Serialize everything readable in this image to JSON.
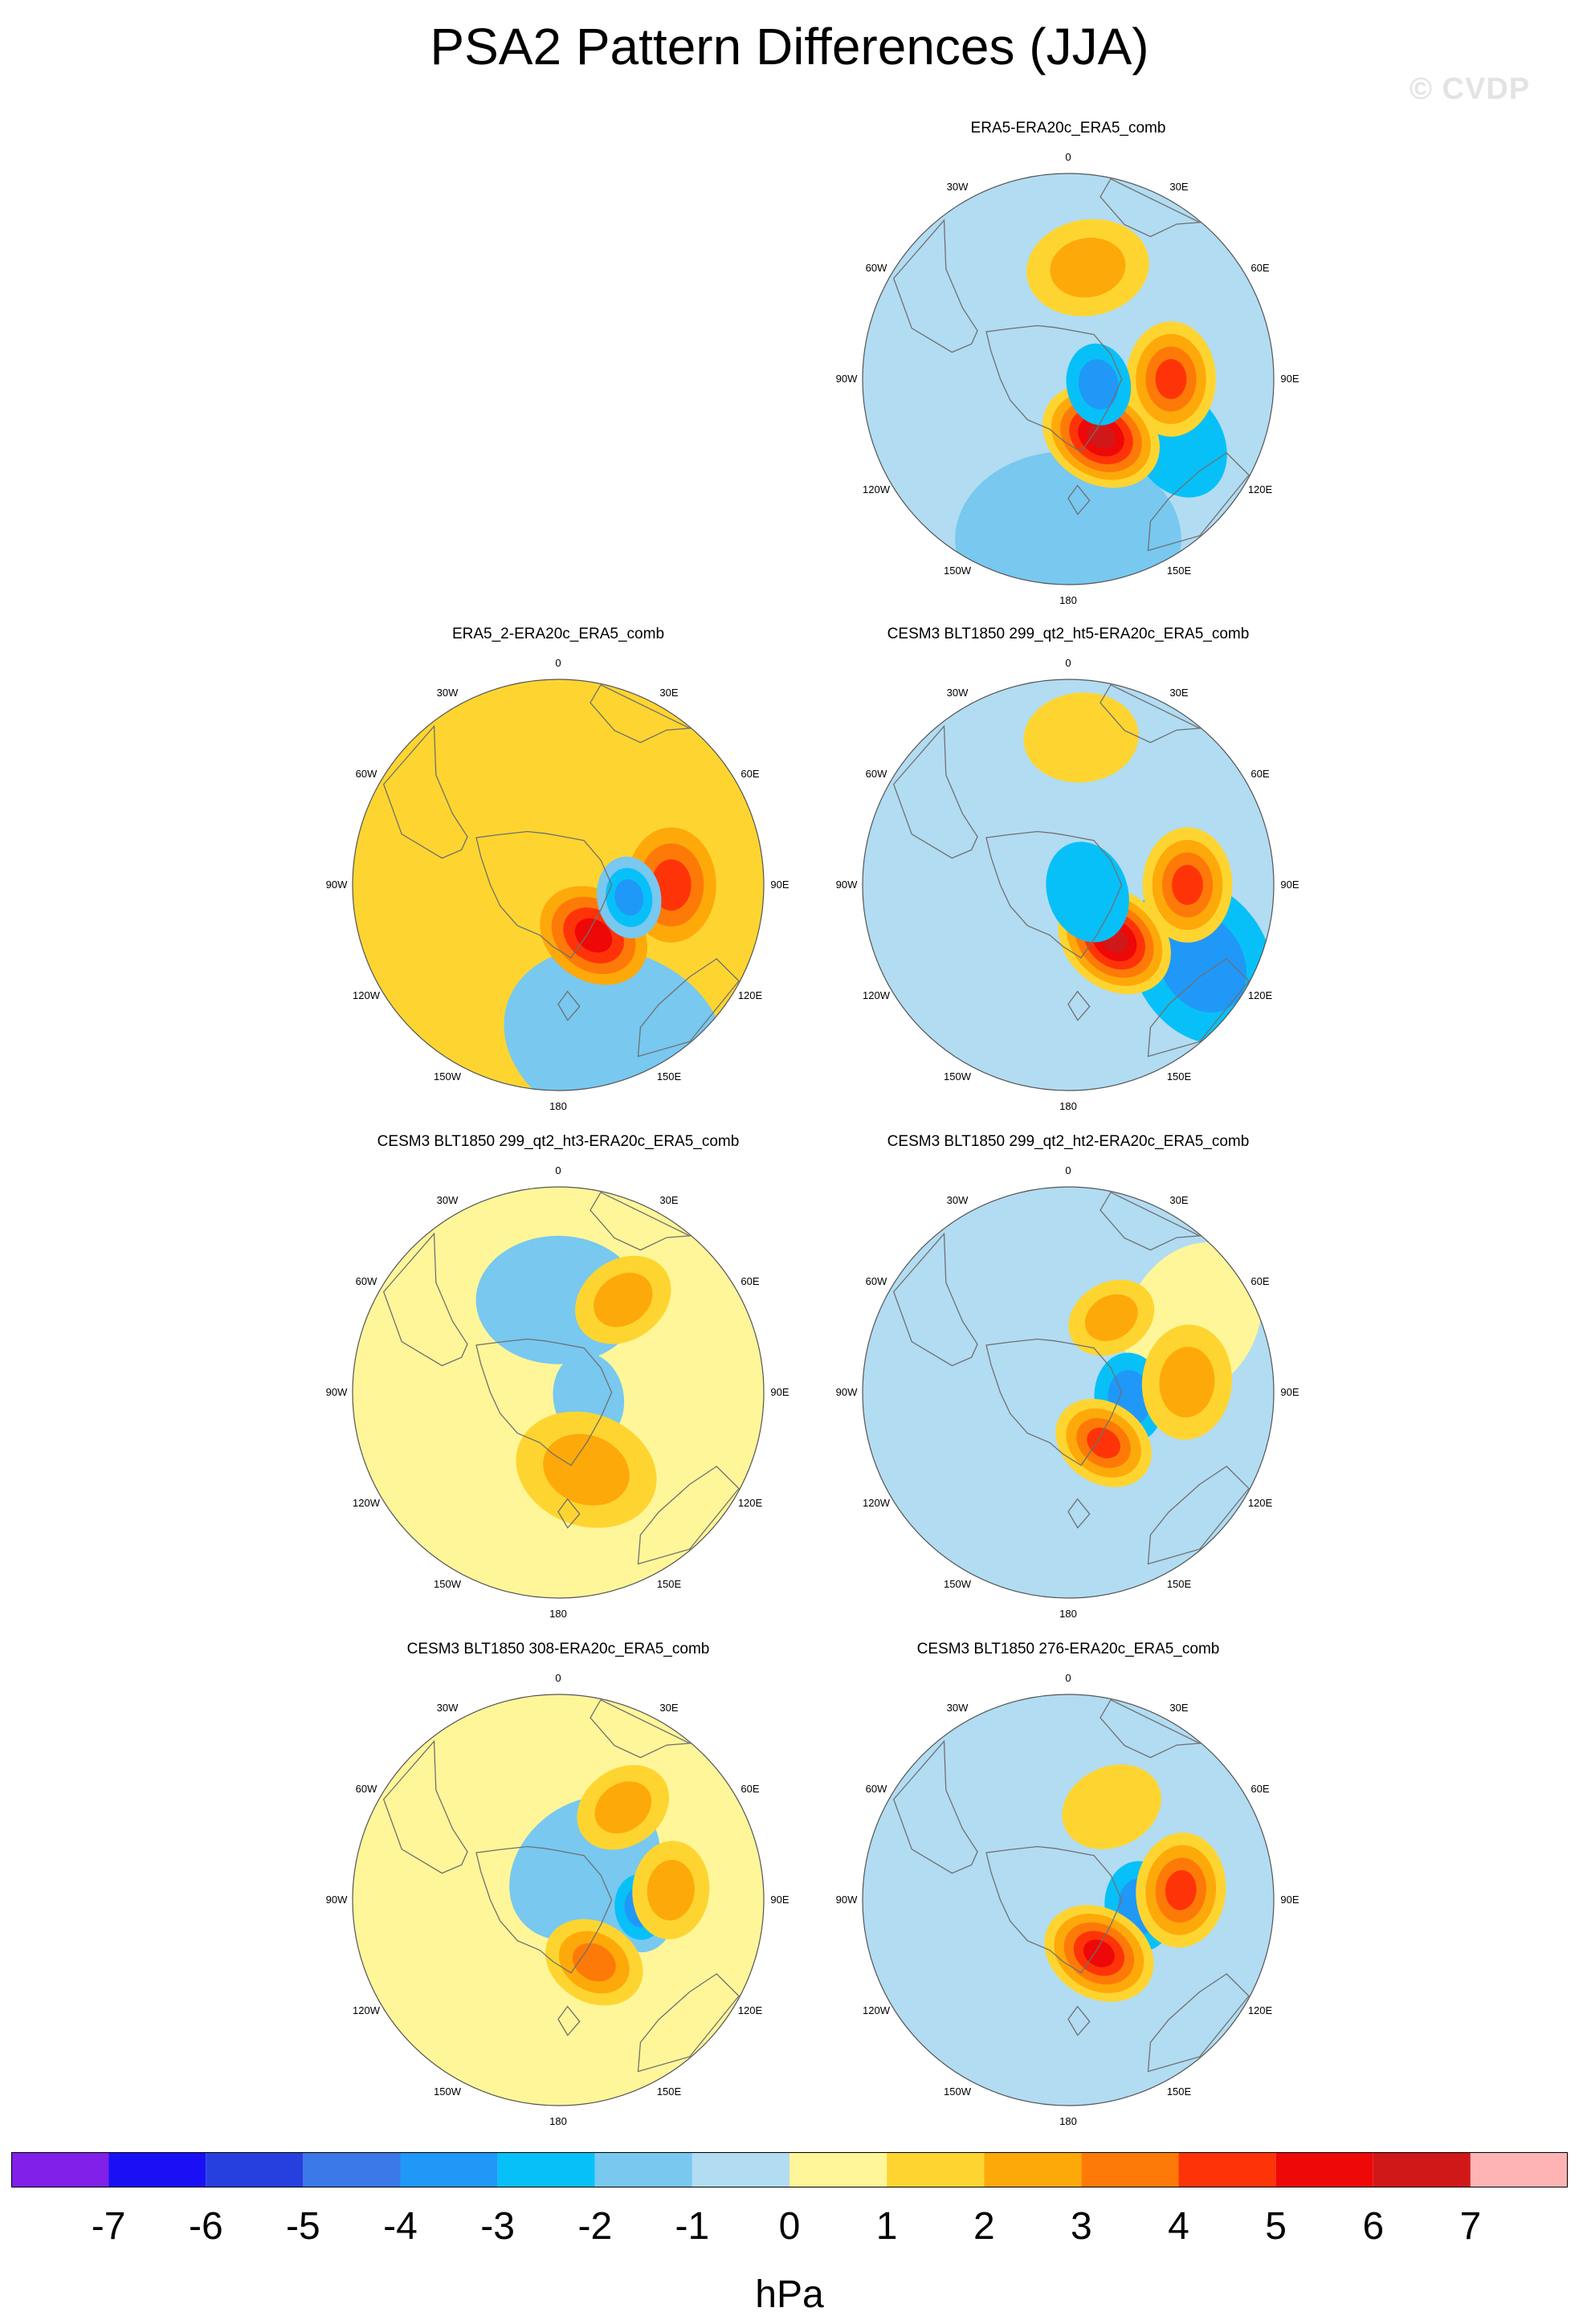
{
  "title": "PSA2 Pattern Differences (JJA)",
  "watermark": "© CVDP",
  "units": "hPa",
  "colors": {
    "coast": "#707070",
    "outline": "#555555",
    "levels": [
      "#8020e8",
      "#1a10f5",
      "#2640e0",
      "#3a78e8",
      "#2098f8",
      "#08c0f8",
      "#78c8f0",
      "#b2dcf2",
      "#fff69a",
      "#fed530",
      "#fea90a",
      "#fe7a08",
      "#fe3408",
      "#ee0808",
      "#d01818",
      "#feb4b4"
    ]
  },
  "chart_data": {
    "type": "contour-map",
    "projection": "south-polar-stereographic",
    "variable": "PSA2 pattern difference (JJA)",
    "unit": "hPa",
    "colorbar_ticks": [
      -7,
      -6,
      -5,
      -4,
      -3,
      -2,
      -1,
      0,
      1,
      2,
      3,
      4,
      5,
      6,
      7
    ],
    "lon_labels": [
      "0",
      "30E",
      "60E",
      "90E",
      "120E",
      "150E",
      "180",
      "150W",
      "120W",
      "90W",
      "60W",
      "30W"
    ],
    "panels": [
      {
        "title": "ERA5-ERA20c_ERA5_comb",
        "base": -1,
        "features": [
          {
            "lon": 180,
            "r": 0.78,
            "value": -1.5,
            "size": 0.55
          },
          {
            "lon": 120,
            "r": 0.62,
            "value": -2.5,
            "size": 0.28
          },
          {
            "lon": 10,
            "r": 0.55,
            "value": 2.2,
            "size": 0.3
          },
          {
            "lon": 90,
            "r": 0.5,
            "value": 4.5,
            "size": 0.28
          },
          {
            "lon": 150,
            "r": 0.32,
            "value": 6.5,
            "size": 0.3
          },
          {
            "lon": 100,
            "r": 0.15,
            "value": -3.5,
            "size": 0.2
          }
        ]
      },
      {
        "title": "ERA5_2-ERA20c_ERA5_comb",
        "base": 1,
        "features": [
          {
            "lon": 160,
            "r": 0.8,
            "value": -1.5,
            "size": 0.55
          },
          {
            "lon": 20,
            "r": 0.45,
            "value": 1.8,
            "size": 0.25
          },
          {
            "lon": 90,
            "r": 0.55,
            "value": 4.2,
            "size": 0.28
          },
          {
            "lon": 145,
            "r": 0.3,
            "value": 5.5,
            "size": 0.28
          },
          {
            "lon": 100,
            "r": 0.35,
            "value": -3.5,
            "size": 0.2
          }
        ]
      },
      {
        "title": "CESM3 BLT1850 299_qt2_ht5-ERA20c_ERA5_comb",
        "base": -1,
        "features": [
          {
            "lon": 120,
            "r": 0.75,
            "value": -3.2,
            "size": 0.42
          },
          {
            "lon": 5,
            "r": 0.72,
            "value": 1.8,
            "size": 0.28
          },
          {
            "lon": 90,
            "r": 0.58,
            "value": 4.5,
            "size": 0.28
          },
          {
            "lon": 140,
            "r": 0.35,
            "value": 6.0,
            "size": 0.3
          },
          {
            "lon": 110,
            "r": 0.1,
            "value": -2.5,
            "size": 0.25
          }
        ]
      },
      {
        "title": "CESM3 BLT1850 299_qt2_ht3-ERA20c_ERA5_comb",
        "base": 0.5,
        "features": [
          {
            "lon": 0,
            "r": 0.45,
            "value": -1.2,
            "size": 0.4
          },
          {
            "lon": 100,
            "r": 0.15,
            "value": -1.3,
            "size": 0.22
          },
          {
            "lon": 35,
            "r": 0.55,
            "value": 2.5,
            "size": 0.25
          },
          {
            "lon": 160,
            "r": 0.4,
            "value": 2.8,
            "size": 0.35
          }
        ]
      },
      {
        "title": "CESM3 BLT1850 299_qt2_ht2-ERA20c_ERA5_comb",
        "base": -1,
        "features": [
          {
            "lon": 60,
            "r": 0.7,
            "value": 0.8,
            "size": 0.4
          },
          {
            "lon": 30,
            "r": 0.42,
            "value": 2.8,
            "size": 0.22
          },
          {
            "lon": 95,
            "r": 0.3,
            "value": -3.0,
            "size": 0.22
          },
          {
            "lon": 145,
            "r": 0.3,
            "value": 4.5,
            "size": 0.25
          },
          {
            "lon": 85,
            "r": 0.58,
            "value": 2.2,
            "size": 0.28
          }
        ]
      },
      {
        "title": "CESM3 BLT1850 308-ERA20c_ERA5_comb",
        "base": 0.5,
        "features": [
          {
            "lon": 40,
            "r": 0.2,
            "value": -1.4,
            "size": 0.4
          },
          {
            "lon": 35,
            "r": 0.55,
            "value": 2.2,
            "size": 0.24
          },
          {
            "lon": 95,
            "r": 0.4,
            "value": -3.0,
            "size": 0.22
          },
          {
            "lon": 150,
            "r": 0.35,
            "value": 3.8,
            "size": 0.25
          },
          {
            "lon": 85,
            "r": 0.55,
            "value": 2.5,
            "size": 0.24
          }
        ]
      },
      {
        "title": "CESM3 BLT1850 276-ERA20c_ERA5_comb",
        "base": -1,
        "features": [
          {
            "lon": 25,
            "r": 0.5,
            "value": 1.5,
            "size": 0.25
          },
          {
            "lon": 95,
            "r": 0.35,
            "value": -3.3,
            "size": 0.22
          },
          {
            "lon": 150,
            "r": 0.3,
            "value": 5.2,
            "size": 0.28
          },
          {
            "lon": 85,
            "r": 0.55,
            "value": 4.2,
            "size": 0.28
          }
        ]
      }
    ]
  }
}
